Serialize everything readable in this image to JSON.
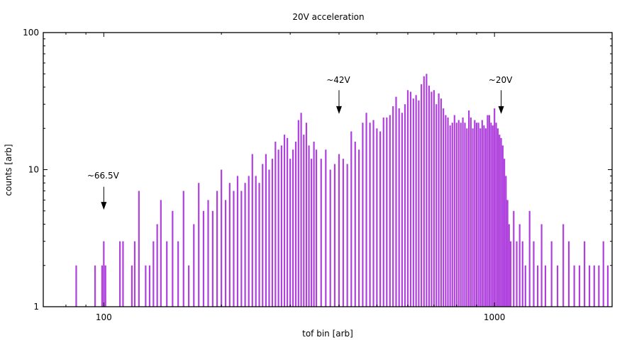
{
  "chart_data": {
    "type": "bar",
    "title": "20V acceleration",
    "xlabel": "tof bin [arb]",
    "ylabel": "counts [arb]",
    "x_scale": "log",
    "y_scale": "log",
    "xlim": [
      70,
      2000
    ],
    "ylim": [
      1,
      100
    ],
    "x_tick_labels": [
      "100",
      "1000"
    ],
    "y_tick_labels": [
      "1",
      "10",
      "100"
    ],
    "grid": false,
    "legend": "none",
    "bar_color": "#9400d3",
    "series": [
      {
        "x": [
          85,
          90,
          95,
          98,
          99,
          100,
          101,
          106,
          110,
          112,
          118,
          120,
          123,
          128,
          131,
          134,
          137,
          140,
          145,
          150,
          155,
          160,
          165,
          170,
          175,
          180,
          185,
          190,
          195,
          200,
          205,
          210,
          215,
          220,
          225,
          230,
          235,
          240,
          245,
          250,
          255,
          260,
          265,
          270,
          275,
          280,
          285,
          290,
          295,
          300,
          305,
          310,
          315,
          320,
          325,
          330,
          335,
          340,
          345,
          350,
          360,
          370,
          380,
          390,
          400,
          410,
          420,
          430,
          440,
          450,
          460,
          470,
          480,
          490,
          500,
          510,
          520,
          530,
          540,
          550,
          560,
          570,
          580,
          590,
          600,
          610,
          620,
          630,
          640,
          650,
          660,
          670,
          680,
          690,
          700,
          710,
          720,
          730,
          740,
          750,
          760,
          770,
          780,
          790,
          800,
          810,
          820,
          830,
          840,
          850,
          860,
          870,
          880,
          890,
          900,
          910,
          920,
          930,
          940,
          950,
          960,
          970,
          980,
          990,
          1000,
          1010,
          1020,
          1030,
          1040,
          1050,
          1060,
          1070,
          1080,
          1090,
          1100,
          1120,
          1140,
          1160,
          1180,
          1200,
          1230,
          1260,
          1290,
          1320,
          1350,
          1400,
          1450,
          1500,
          1550,
          1600,
          1650,
          1700,
          1750,
          1800,
          1850,
          1900,
          1950
        ],
        "values": [
          2,
          1,
          2,
          1,
          2,
          3,
          2,
          1,
          3,
          3,
          2,
          3,
          7,
          2,
          2,
          3,
          4,
          6,
          3,
          5,
          3,
          7,
          2,
          4,
          8,
          5,
          6,
          5,
          7,
          10,
          6,
          8,
          7,
          9,
          7,
          8,
          9,
          13,
          9,
          8,
          11,
          13,
          10,
          12,
          16,
          14,
          15,
          18,
          17,
          12,
          14,
          16,
          23,
          26,
          18,
          22,
          15,
          12,
          16,
          14,
          12,
          14,
          10,
          11,
          13,
          12,
          11,
          19,
          16,
          14,
          22,
          26,
          22,
          23,
          20,
          19,
          24,
          24,
          25,
          29,
          34,
          28,
          26,
          30,
          38,
          37,
          33,
          35,
          32,
          42,
          48,
          50,
          41,
          37,
          38,
          30,
          36,
          33,
          28,
          25,
          24,
          21,
          22,
          25,
          22,
          23,
          22,
          24,
          22,
          20,
          27,
          24,
          20,
          23,
          22,
          22,
          20,
          23,
          21,
          20,
          25,
          25,
          22,
          21,
          28,
          22,
          20,
          18,
          17,
          15,
          12,
          9,
          6,
          4,
          3,
          5,
          3,
          4,
          3,
          2,
          5,
          3,
          2,
          4,
          2,
          3,
          2,
          4,
          3,
          2,
          2,
          3,
          2,
          2,
          2,
          3,
          2
        ]
      }
    ],
    "annotations": [
      {
        "text": "~66.5V",
        "x": 100,
        "y_text": 8.6,
        "y_arrow_start": 7.5,
        "y_arrow_end": 5.1
      },
      {
        "text": "~42V",
        "x": 400,
        "y_text": 43,
        "y_arrow_start": 38,
        "y_arrow_end": 25.5
      },
      {
        "text": "~20V",
        "x": 1040,
        "y_text": 43,
        "y_arrow_start": 38,
        "y_arrow_end": 25.5
      }
    ]
  }
}
